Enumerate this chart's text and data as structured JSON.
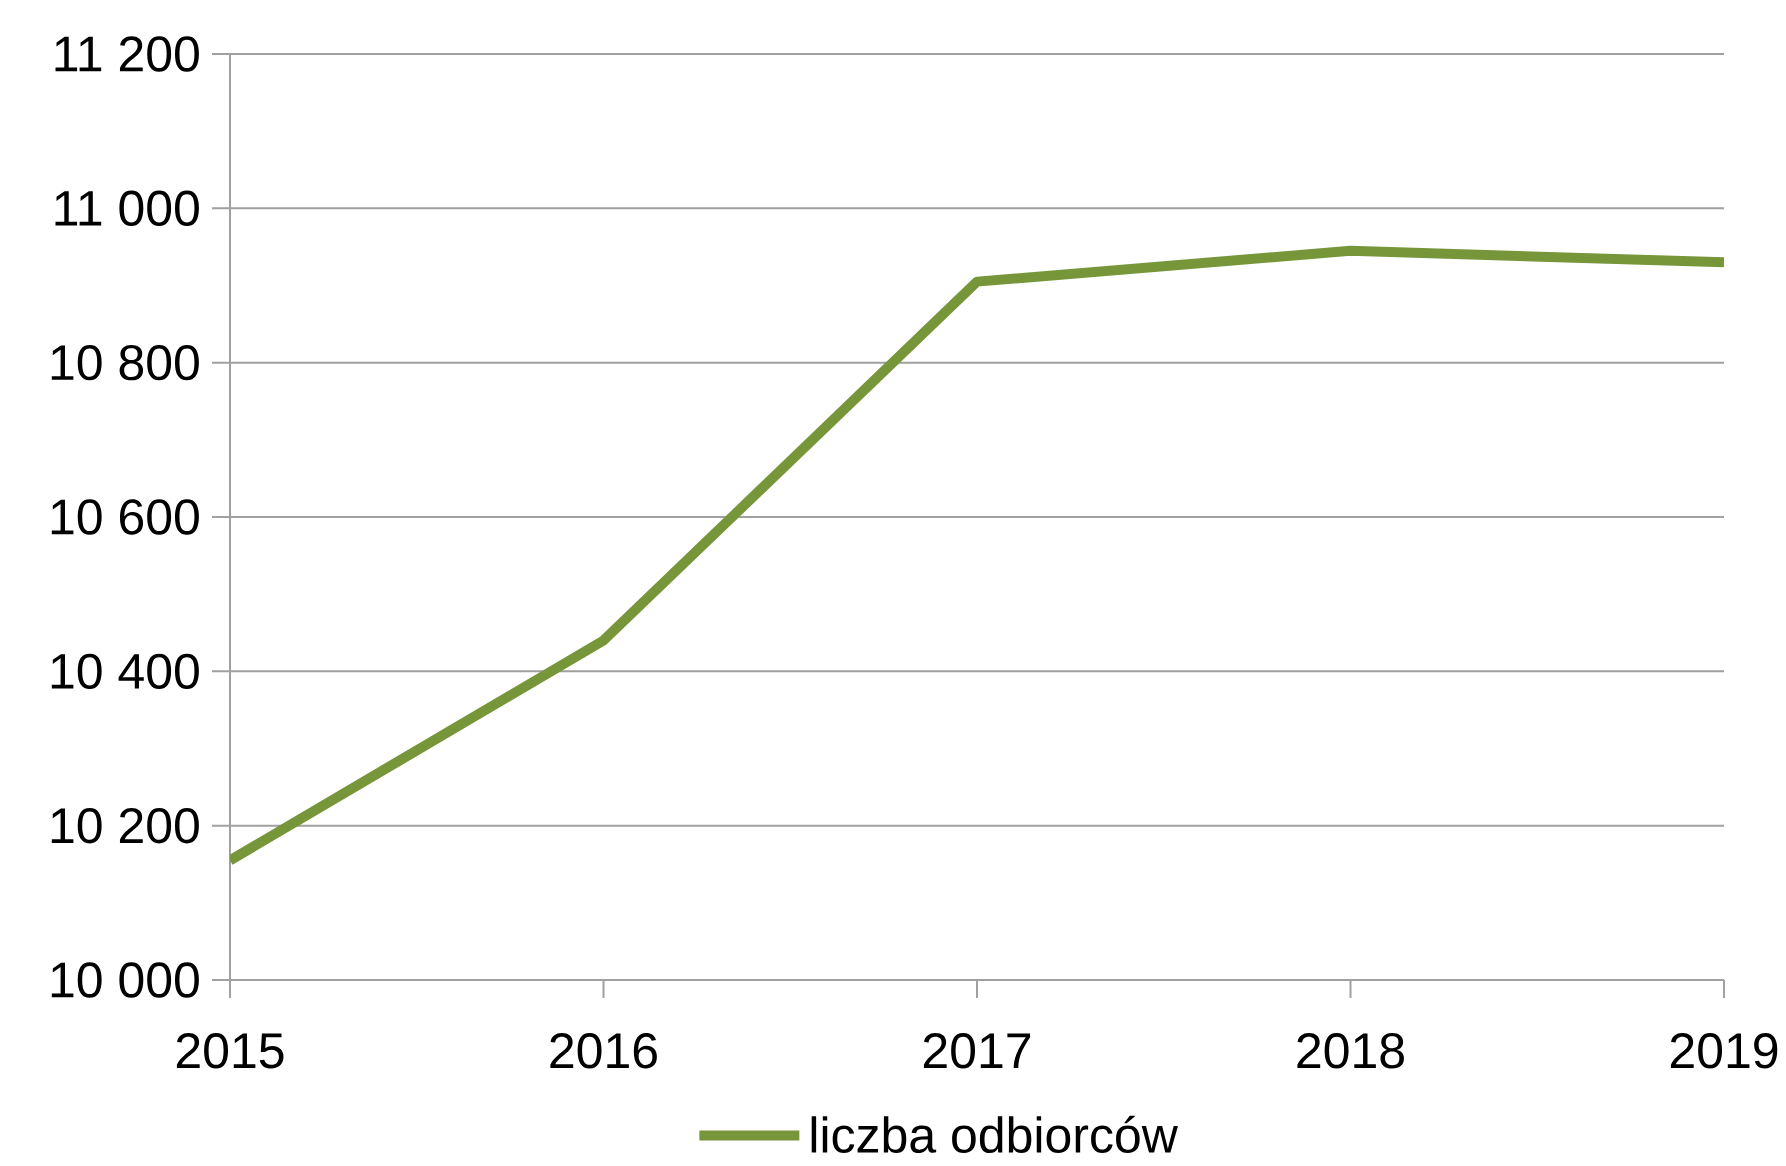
{
  "chart_data": {
    "type": "line",
    "categories": [
      "2015",
      "2016",
      "2017",
      "2018",
      "2019"
    ],
    "series": [
      {
        "name": "liczba odbiorców",
        "color": "#77963a",
        "values": [
          10155,
          10440,
          10905,
          10945,
          10930
        ]
      }
    ],
    "ylim": [
      10000,
      11200
    ],
    "yticks": [
      {
        "value": 10000,
        "label": "10 000"
      },
      {
        "value": 10200,
        "label": "10 200"
      },
      {
        "value": 10400,
        "label": "10 400"
      },
      {
        "value": 10600,
        "label": "10 600"
      },
      {
        "value": 10800,
        "label": "10 800"
      },
      {
        "value": 11000,
        "label": "11 000"
      },
      {
        "value": 11200,
        "label": "11 200"
      }
    ],
    "grid": "y",
    "legend": "bottom",
    "marker": "none",
    "line_style": "solid"
  }
}
